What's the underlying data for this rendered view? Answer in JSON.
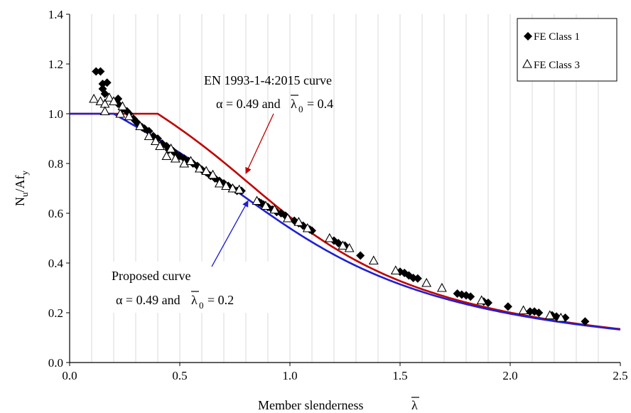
{
  "chart_data": {
    "type": "scatter",
    "xlabel": "Member slenderness",
    "xlabel_symbol": "λ",
    "ylabel": "N",
    "ylabel_sub": "u",
    "ylabel_mid": "/Af",
    "ylabel_sub2": "y",
    "xlim": [
      0,
      2.5
    ],
    "ylim": [
      0,
      1.4
    ],
    "xticks": [
      0.0,
      0.5,
      1.0,
      1.5,
      2.0,
      2.5
    ],
    "yticks": [
      0.0,
      0.2,
      0.4,
      0.6,
      0.8,
      1.0,
      1.2,
      1.4
    ],
    "xtick_labels": [
      "0.0",
      "0.5",
      "1.0",
      "1.5",
      "2.0",
      "2.5"
    ],
    "ytick_labels": [
      "0.0",
      "0.2",
      "0.4",
      "0.6",
      "0.8",
      "1.0",
      "1.2",
      "1.4"
    ],
    "grid": "vertical minor gridlines every 0.1",
    "legend_position": "top-right",
    "colors": {
      "en_curve": "#c00000",
      "proposed_curve": "#1f1fd6",
      "points": "#000000"
    },
    "annotations": {
      "en_title": "EN 1993-1-4:2015 curve",
      "en_alpha": "α = 0.49 and",
      "en_lambda0": "= 0.4",
      "en_arrow_to": [
        0.8,
        0.76
      ],
      "proposed_title": "Proposed curve",
      "proposed_alpha": "α = 0.49 and",
      "proposed_lambda0": "= 0.2",
      "proposed_arrow_to": [
        0.81,
        0.65
      ]
    },
    "lines": [
      {
        "name": "EN 1993-1-4:2015 curve",
        "alpha": 0.49,
        "lambda0": 0.4,
        "x_start": 0,
        "x_end": 2.5
      },
      {
        "name": "Proposed curve",
        "alpha": 0.49,
        "lambda0": 0.2,
        "x_start": 0,
        "x_end": 2.5
      }
    ],
    "series": [
      {
        "name": "FE Class 1",
        "marker": "diamond",
        "points": [
          [
            0.12,
            1.17
          ],
          [
            0.14,
            1.17
          ],
          [
            0.15,
            1.1
          ],
          [
            0.15,
            1.12
          ],
          [
            0.17,
            1.125
          ],
          [
            0.16,
            1.08
          ],
          [
            0.22,
            1.06
          ],
          [
            0.22,
            1.04
          ],
          [
            0.24,
            1.02
          ],
          [
            0.26,
            1.01
          ],
          [
            0.27,
            1.0
          ],
          [
            0.29,
            0.98
          ],
          [
            0.3,
            0.97
          ],
          [
            0.31,
            0.96
          ],
          [
            0.33,
            0.945
          ],
          [
            0.34,
            0.94
          ],
          [
            0.36,
            0.93
          ],
          [
            0.38,
            0.91
          ],
          [
            0.4,
            0.9
          ],
          [
            0.42,
            0.88
          ],
          [
            0.44,
            0.87
          ],
          [
            0.45,
            0.855
          ],
          [
            0.47,
            0.85
          ],
          [
            0.48,
            0.84
          ],
          [
            0.5,
            0.83
          ],
          [
            0.52,
            0.82
          ],
          [
            0.54,
            0.81
          ],
          [
            0.56,
            0.8
          ],
          [
            0.58,
            0.79
          ],
          [
            0.6,
            0.775
          ],
          [
            0.62,
            0.765
          ],
          [
            0.64,
            0.75
          ],
          [
            0.66,
            0.74
          ],
          [
            0.68,
            0.73
          ],
          [
            0.7,
            0.72
          ],
          [
            0.72,
            0.71
          ],
          [
            0.74,
            0.7
          ],
          [
            0.76,
            0.69
          ],
          [
            0.78,
            0.69
          ],
          [
            0.86,
            0.645
          ],
          [
            0.87,
            0.64
          ],
          [
            0.88,
            0.635
          ],
          [
            0.9,
            0.625
          ],
          [
            0.92,
            0.615
          ],
          [
            0.94,
            0.605
          ],
          [
            0.96,
            0.6
          ],
          [
            0.98,
            0.59
          ],
          [
            1.02,
            0.57
          ],
          [
            1.04,
            0.56
          ],
          [
            1.06,
            0.55
          ],
          [
            1.09,
            0.535
          ],
          [
            1.1,
            0.53
          ],
          [
            1.2,
            0.49
          ],
          [
            1.22,
            0.48
          ],
          [
            1.25,
            0.47
          ],
          [
            1.32,
            0.43
          ],
          [
            1.5,
            0.365
          ],
          [
            1.52,
            0.36
          ],
          [
            1.54,
            0.35
          ],
          [
            1.56,
            0.34
          ],
          [
            1.58,
            0.338
          ],
          [
            1.76,
            0.277
          ],
          [
            1.78,
            0.273
          ],
          [
            1.8,
            0.27
          ],
          [
            1.82,
            0.265
          ],
          [
            1.88,
            0.245
          ],
          [
            1.9,
            0.24
          ],
          [
            1.99,
            0.225
          ],
          [
            2.09,
            0.205
          ],
          [
            2.11,
            0.205
          ],
          [
            2.13,
            0.2
          ],
          [
            2.19,
            0.19
          ],
          [
            2.21,
            0.185
          ],
          [
            2.25,
            0.18
          ],
          [
            2.34,
            0.165
          ]
        ]
      },
      {
        "name": "FE Class 3",
        "marker": "triangle",
        "points": [
          [
            0.11,
            1.06
          ],
          [
            0.14,
            1.05
          ],
          [
            0.16,
            1.04
          ],
          [
            0.16,
            1.01
          ],
          [
            0.18,
            1.065
          ],
          [
            0.2,
            1.05
          ],
          [
            0.23,
            1.0
          ],
          [
            0.24,
            1.03
          ],
          [
            0.27,
            0.99
          ],
          [
            0.32,
            0.95
          ],
          [
            0.36,
            0.91
          ],
          [
            0.39,
            0.89
          ],
          [
            0.41,
            0.87
          ],
          [
            0.44,
            0.83
          ],
          [
            0.46,
            0.86
          ],
          [
            0.48,
            0.82
          ],
          [
            0.52,
            0.8
          ],
          [
            0.55,
            0.81
          ],
          [
            0.59,
            0.78
          ],
          [
            0.62,
            0.77
          ],
          [
            0.65,
            0.755
          ],
          [
            0.68,
            0.72
          ],
          [
            0.71,
            0.71
          ],
          [
            0.74,
            0.7
          ],
          [
            0.77,
            0.695
          ],
          [
            0.85,
            0.65
          ],
          [
            0.89,
            0.63
          ],
          [
            0.93,
            0.615
          ],
          [
            0.99,
            0.58
          ],
          [
            1.04,
            0.565
          ],
          [
            1.08,
            0.54
          ],
          [
            1.18,
            0.5
          ],
          [
            1.24,
            0.47
          ],
          [
            1.27,
            0.46
          ],
          [
            1.38,
            0.41
          ],
          [
            1.48,
            0.37
          ],
          [
            1.62,
            0.32
          ],
          [
            1.69,
            0.3
          ],
          [
            1.87,
            0.25
          ],
          [
            2.06,
            0.21
          ],
          [
            2.18,
            0.19
          ],
          [
            2.23,
            0.18
          ]
        ]
      }
    ]
  }
}
